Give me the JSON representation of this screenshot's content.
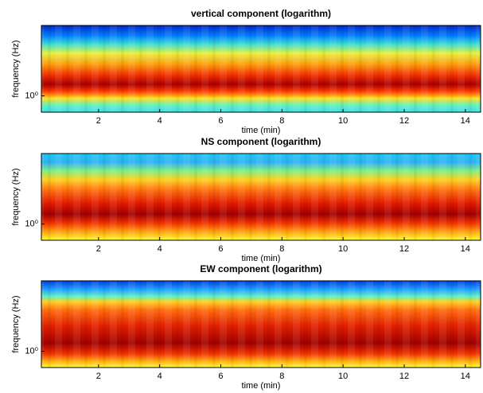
{
  "chart_data": [
    {
      "type": "heatmap",
      "title": "vertical component (logarithm)",
      "xlabel": "time (min)",
      "ylabel": "frequency (Hz)",
      "xlim": [
        0.13,
        14.5
      ],
      "xticks": [
        2,
        4,
        6,
        8,
        10,
        12,
        14
      ],
      "ylim": [
        0.5,
        20
      ],
      "yscale": "log",
      "yticks": [
        {
          "value": 1,
          "label": "10⁰"
        }
      ]
    },
    {
      "type": "heatmap",
      "title": "NS component (logarithm)",
      "xlabel": "time (min)",
      "ylabel": "frequency (Hz)",
      "xlim": [
        0.13,
        14.5
      ],
      "xticks": [
        2,
        4,
        6,
        8,
        10,
        12,
        14
      ],
      "ylim": [
        0.5,
        20
      ],
      "yscale": "log",
      "yticks": [
        {
          "value": 1,
          "label": "10⁰"
        }
      ]
    },
    {
      "type": "heatmap",
      "title": "EW component (logarithm)",
      "xlabel": "time (min)",
      "ylabel": "frequency (Hz)",
      "xlim": [
        0.13,
        14.5
      ],
      "xticks": [
        2,
        4,
        6,
        8,
        10,
        12,
        14
      ],
      "ylim": [
        0.5,
        20
      ],
      "yscale": "log",
      "yticks": [
        {
          "value": 1,
          "label": "10⁰"
        }
      ]
    }
  ]
}
